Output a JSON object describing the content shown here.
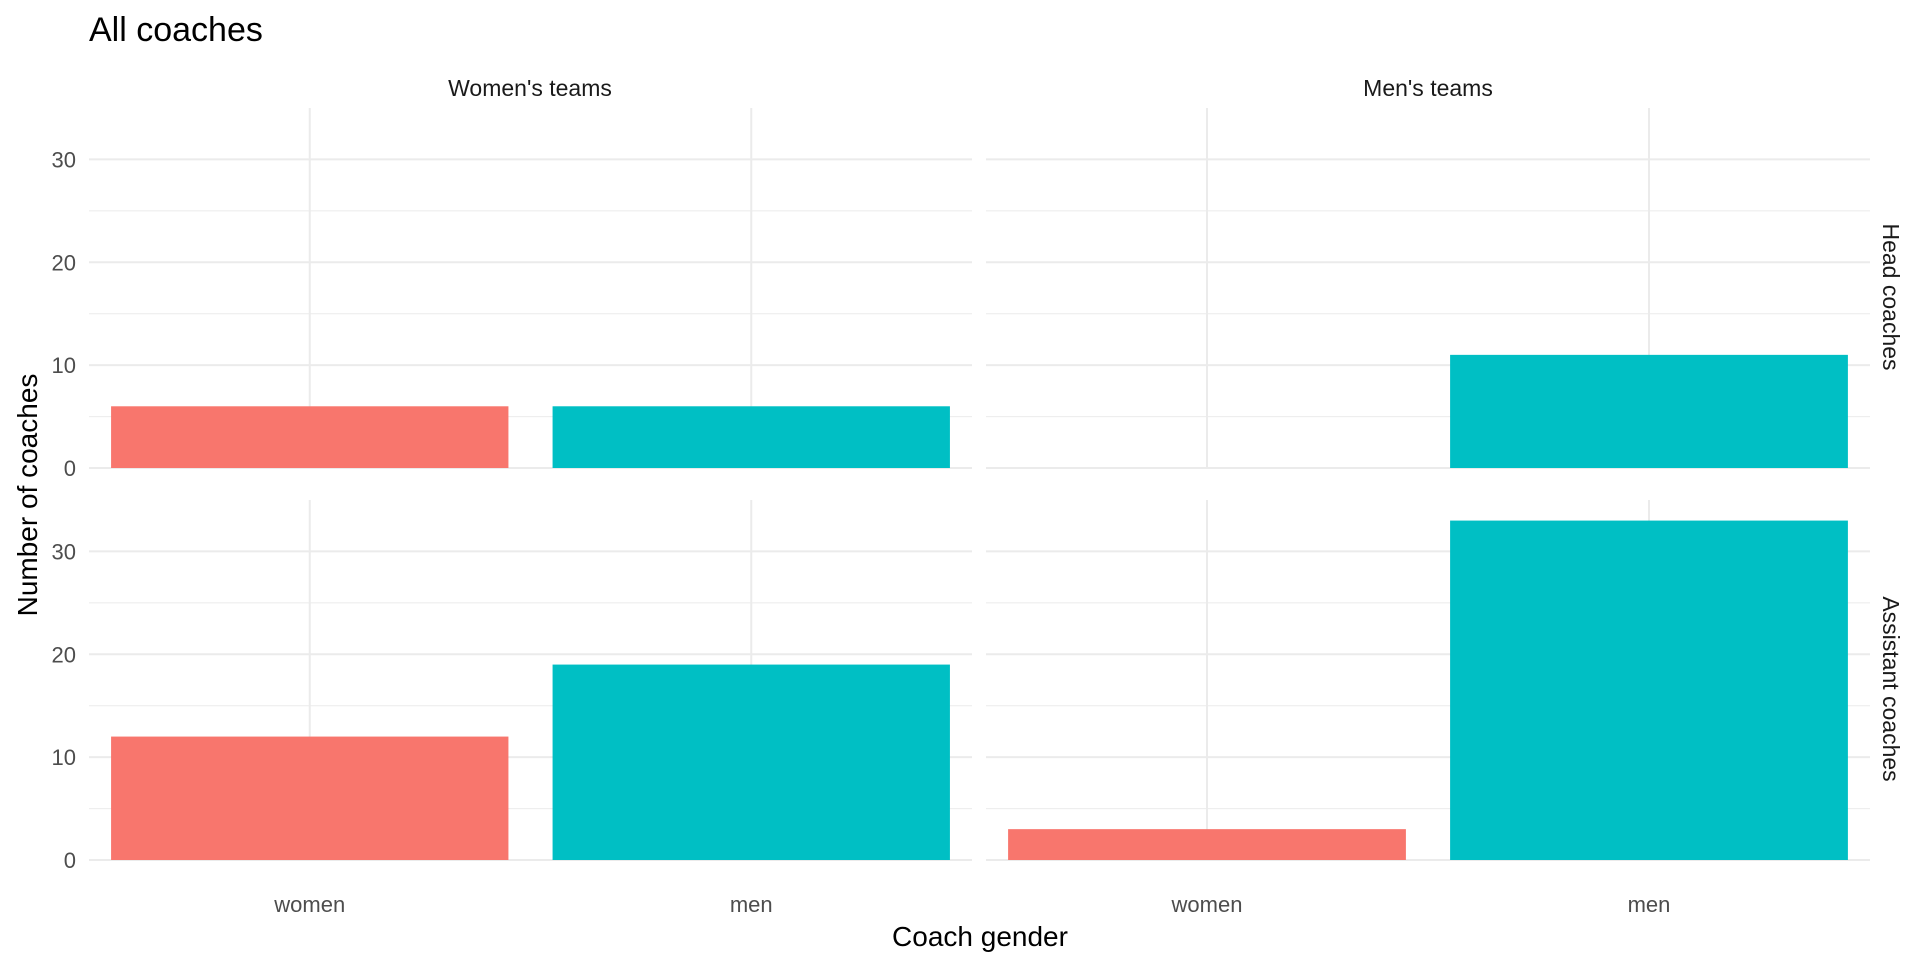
{
  "chart_data": {
    "type": "bar",
    "title": "All coaches",
    "xlabel": "Coach gender",
    "ylabel": "Number of coaches",
    "categories": [
      "women",
      "men"
    ],
    "columns": [
      "Women's teams",
      "Men's teams"
    ],
    "rows": [
      "Head coaches",
      "Assistant coaches"
    ],
    "ylim": [
      0,
      35
    ],
    "yticks": [
      0,
      10,
      20,
      30
    ],
    "grid": true,
    "legend": "none",
    "colors": {
      "women": "#F8766D",
      "men": "#00BFC4",
      "grid": "#ebebeb"
    },
    "panels": [
      {
        "row": "Head coaches",
        "column": "Women's teams",
        "values": [
          6,
          6
        ]
      },
      {
        "row": "Head coaches",
        "column": "Men's teams",
        "values": [
          0,
          11
        ]
      },
      {
        "row": "Assistant coaches",
        "column": "Women's teams",
        "values": [
          12,
          19
        ]
      },
      {
        "row": "Assistant coaches",
        "column": "Men's teams",
        "values": [
          3,
          33
        ]
      }
    ]
  }
}
